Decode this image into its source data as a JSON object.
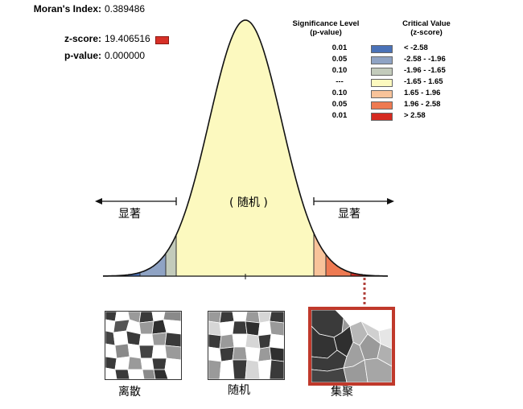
{
  "stats": {
    "morans_index_label": "Moran's Index:",
    "morans_index_value": "0.389486",
    "zscore_label": "z-score:",
    "zscore_value": "19.406516",
    "pvalue_label": "p-value:",
    "pvalue_value": "0.000000"
  },
  "legend": {
    "sig_header_line1": "Significance Level",
    "sig_header_line2": "(p-value)",
    "crit_header_line1": "Critical Value",
    "crit_header_line2": "(z-score)",
    "rows": [
      {
        "p": "0.01",
        "color": "#4a72b8",
        "range": "< -2.58"
      },
      {
        "p": "0.05",
        "color": "#8fa3c4",
        "range": "-2.58 - -1.96"
      },
      {
        "p": "0.10",
        "color": "#c3cbbb",
        "range": "-1.96 - -1.65"
      },
      {
        "p": "---",
        "color": "#fcf9bf",
        "range": "-1.65 - 1.65"
      },
      {
        "p": "0.10",
        "color": "#f8c39a",
        "range": "1.65 - 1.96"
      },
      {
        "p": "0.05",
        "color": "#ee7a52",
        "range": "1.96 - 2.58"
      },
      {
        "p": "0.01",
        "color": "#d52a20",
        "range": "> 2.58"
      }
    ]
  },
  "curve": {
    "center_label": "( 随机 )",
    "left_label": "显著",
    "right_label": "显著"
  },
  "thumbnails": {
    "dispersed_label": "离散",
    "random_label": "随机",
    "clustered_label": "集聚"
  },
  "colors": {
    "highlight_border": "#c0392b",
    "connector": "#b0403a"
  }
}
